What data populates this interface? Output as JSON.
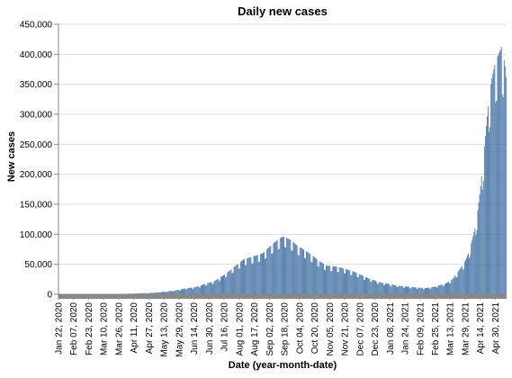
{
  "chart_data": {
    "type": "bar",
    "title": "Daily new cases",
    "xlabel": "Date (year-month-date)",
    "ylabel": "New cases",
    "ylim": [
      0,
      450000
    ],
    "grid": true,
    "legend": "none",
    "bar_color": "#4c78a8",
    "y_ticks": [
      {
        "value": 0,
        "label": "0"
      },
      {
        "value": 50000,
        "label": "50,000"
      },
      {
        "value": 100000,
        "label": "100,000"
      },
      {
        "value": 150000,
        "label": "150,000"
      },
      {
        "value": 200000,
        "label": "200,000"
      },
      {
        "value": 250000,
        "label": "250,000"
      },
      {
        "value": 300000,
        "label": "300,000"
      },
      {
        "value": 350000,
        "label": "350,000"
      },
      {
        "value": 400000,
        "label": "400,000"
      },
      {
        "value": 450000,
        "label": "450,000"
      }
    ],
    "x_ticks": [
      {
        "date": "2020-01-22",
        "label": "Jan 22, 2020"
      },
      {
        "date": "2020-02-07",
        "label": "Feb 07, 2020"
      },
      {
        "date": "2020-02-23",
        "label": "Feb 23, 2020"
      },
      {
        "date": "2020-03-10",
        "label": "Mar 10, 2020"
      },
      {
        "date": "2020-03-26",
        "label": "Mar 26, 2020"
      },
      {
        "date": "2020-04-11",
        "label": "Apr 11, 2020"
      },
      {
        "date": "2020-04-27",
        "label": "Apr 27, 2020"
      },
      {
        "date": "2020-05-13",
        "label": "May 13, 2020"
      },
      {
        "date": "2020-05-29",
        "label": "May 29, 2020"
      },
      {
        "date": "2020-06-14",
        "label": "Jun 14, 2020"
      },
      {
        "date": "2020-06-30",
        "label": "Jun 30, 2020"
      },
      {
        "date": "2020-07-16",
        "label": "Jul 16, 2020"
      },
      {
        "date": "2020-08-01",
        "label": "Aug 01, 2020"
      },
      {
        "date": "2020-08-17",
        "label": "Aug 17, 2020"
      },
      {
        "date": "2020-09-02",
        "label": "Sep 02, 2020"
      },
      {
        "date": "2020-09-18",
        "label": "Sep 18, 2020"
      },
      {
        "date": "2020-10-04",
        "label": "Oct 04, 2020"
      },
      {
        "date": "2020-10-20",
        "label": "Oct 20, 2020"
      },
      {
        "date": "2020-11-05",
        "label": "Nov 05, 2020"
      },
      {
        "date": "2020-11-21",
        "label": "Nov 21, 2020"
      },
      {
        "date": "2020-12-07",
        "label": "Dec 07, 2020"
      },
      {
        "date": "2020-12-23",
        "label": "Dec 23, 2020"
      },
      {
        "date": "2021-01-08",
        "label": "Jan 08, 2021"
      },
      {
        "date": "2021-01-24",
        "label": "Jan 24, 2021"
      },
      {
        "date": "2021-02-09",
        "label": "Feb 09, 2021"
      },
      {
        "date": "2021-02-25",
        "label": "Feb 25, 2021"
      },
      {
        "date": "2021-03-13",
        "label": "Mar 13, 2021"
      },
      {
        "date": "2021-03-29",
        "label": "Mar 29, 2021"
      },
      {
        "date": "2021-04-14",
        "label": "Apr 14, 2021"
      },
      {
        "date": "2021-04-30",
        "label": "Apr 30, 2021"
      }
    ],
    "series": [
      {
        "x": [
          "2020-01-22",
          "2020-02-01",
          "2020-02-15",
          "2020-03-01",
          "2020-03-15",
          "2020-03-25",
          "2020-04-05",
          "2020-04-15",
          "2020-04-25",
          "2020-05-05",
          "2020-05-15",
          "2020-05-25",
          "2020-06-05",
          "2020-06-15",
          "2020-06-25",
          "2020-07-05",
          "2020-07-15",
          "2020-07-22",
          "2020-07-28",
          "2020-08-05",
          "2020-08-15",
          "2020-08-25",
          "2020-09-01",
          "2020-09-08",
          "2020-09-14",
          "2020-09-18",
          "2020-09-25",
          "2020-10-02",
          "2020-10-10",
          "2020-10-17",
          "2020-10-25",
          "2020-11-01",
          "2020-11-08",
          "2020-11-15",
          "2020-11-22",
          "2020-11-30",
          "2020-12-07",
          "2020-12-14",
          "2020-12-21",
          "2020-12-28",
          "2021-01-04",
          "2021-01-11",
          "2021-01-18",
          "2021-01-25",
          "2021-02-01",
          "2021-02-08",
          "2021-02-15",
          "2021-02-22",
          "2021-03-01",
          "2021-03-08",
          "2021-03-15",
          "2021-03-22",
          "2021-03-29",
          "2021-04-01",
          "2021-04-05",
          "2021-04-08",
          "2021-04-11",
          "2021-04-14",
          "2021-04-17",
          "2021-04-20",
          "2021-04-23",
          "2021-04-26",
          "2021-04-30",
          "2021-05-03",
          "2021-05-06",
          "2021-05-08",
          "2021-05-10",
          "2021-05-11"
        ],
        "values": [
          0,
          0,
          0,
          100,
          500,
          700,
          1000,
          1500,
          2000,
          3000,
          4500,
          6500,
          10000,
          12000,
          17000,
          22000,
          32000,
          40000,
          48000,
          58000,
          63000,
          68000,
          78000,
          88000,
          95000,
          96000,
          90000,
          80000,
          73000,
          65000,
          55000,
          48000,
          47000,
          45000,
          42000,
          38000,
          33000,
          28000,
          24000,
          20000,
          18000,
          16000,
          14000,
          13000,
          12000,
          11000,
          10500,
          12000,
          15000,
          18000,
          25000,
          40000,
          57000,
          68000,
          90000,
          110000,
          140000,
          180000,
          230000,
          280000,
          330000,
          360000,
          390000,
          400000,
          412000,
          401000,
          380000,
          362000
        ]
      }
    ]
  }
}
